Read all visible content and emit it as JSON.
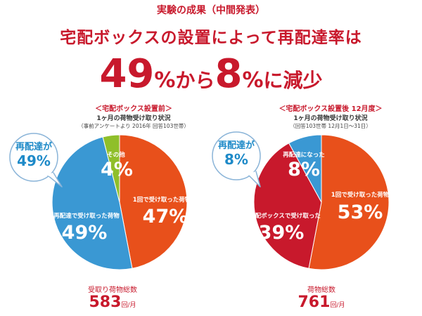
{
  "header": {
    "tag": "実験の成果（中間発表）",
    "headline": "宅配ボックスの設置によって再配達率は",
    "before_value": "49",
    "before_unit": "%",
    "connector": "から",
    "after_value": "8",
    "after_unit": "%",
    "suffix": "に減少"
  },
  "colors": {
    "red": "#c8192c",
    "orange": "#e8501b",
    "blue": "#3a98d3",
    "green": "#8fbf2a"
  },
  "chart_data": [
    {
      "type": "pie",
      "title": "＜宅配ボックス設置前＞",
      "subtitle": "1ヶ月の荷物受け取り状況",
      "note": "（事前アンケートより 2016年 回答103世帯）",
      "slices": [
        {
          "label": "1回で受け取った荷物",
          "value": 47,
          "pct_text": "47%",
          "color": "#e8501b"
        },
        {
          "label": "再配達で受け取った荷物",
          "value": 49,
          "pct_text": "49%",
          "color": "#3a98d3"
        },
        {
          "label": "その他",
          "value": 4,
          "pct_text": "4%",
          "color": "#8fbf2a"
        }
      ],
      "callout": {
        "label": "再配達が",
        "value": "49%"
      },
      "total_label": "受取り荷物総数",
      "total_value": "583",
      "total_unit": "回/月"
    },
    {
      "type": "pie",
      "title": "＜宅配ボックス設置後 12月度＞",
      "subtitle": "1ヶ月の荷物受け取り状況",
      "note": "（回答103世帯 12月1日〜31日）",
      "slices": [
        {
          "label": "1回で受け取った荷物",
          "value": 53,
          "pct_text": "53%",
          "color": "#e8501b"
        },
        {
          "label": "宅配ボックスで受け取った",
          "value": 39,
          "pct_text": "39%",
          "color": "#c8192c"
        },
        {
          "label": "再配達になった",
          "value": 8,
          "pct_text": "8%",
          "color": "#3a98d3"
        }
      ],
      "callout": {
        "label": "再配達が",
        "value": "8%"
      },
      "total_label": "荷物総数",
      "total_value": "761",
      "total_unit": "回/月"
    }
  ]
}
